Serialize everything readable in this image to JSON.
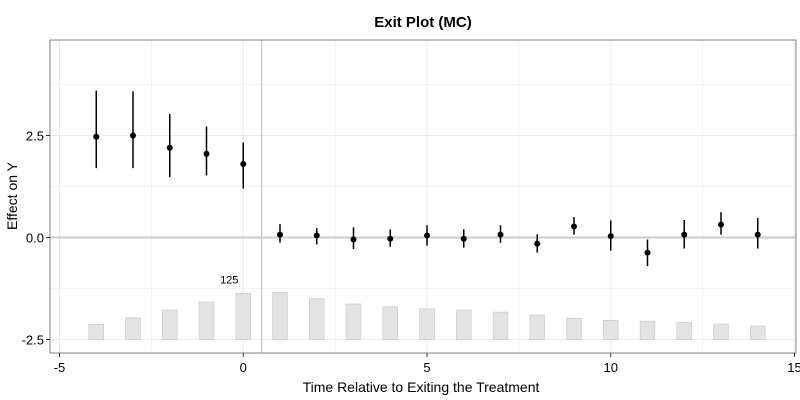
{
  "chart_data": {
    "type": "scatter",
    "title": "Exit Plot (MC)",
    "xlabel": "Time Relative to Exiting the Treatment",
    "ylabel": "Effect on Y",
    "xlim": [
      -5,
      15
    ],
    "ylim": [
      -2.75,
      4.75
    ],
    "x_ticks": [
      -5,
      0,
      5,
      10,
      15
    ],
    "x_tick_labels": [
      "-5",
      "0",
      "5",
      "10",
      "15"
    ],
    "y_ticks": [
      -2.5,
      0,
      2.5
    ],
    "y_tick_labels": [
      "-2.5",
      "0.0",
      "2.5"
    ],
    "grid": true,
    "reference_lines": {
      "horizontal_y": 0,
      "vertical_x": 0.5
    },
    "estimates": {
      "x": [
        -4,
        -3,
        -2,
        -1,
        0,
        1,
        2,
        3,
        4,
        5,
        6,
        7,
        8,
        9,
        10,
        11,
        12,
        13,
        14
      ],
      "y": [
        2.47,
        2.5,
        2.2,
        2.05,
        1.8,
        0.07,
        0.05,
        -0.05,
        -0.03,
        0.05,
        -0.03,
        0.07,
        -0.15,
        0.27,
        0.03,
        -0.37,
        0.07,
        0.32,
        0.07
      ],
      "lower": [
        1.7,
        1.7,
        1.48,
        1.52,
        1.2,
        -0.13,
        -0.17,
        -0.28,
        -0.23,
        -0.2,
        -0.25,
        -0.13,
        -0.37,
        0.07,
        -0.32,
        -0.7,
        -0.27,
        0.07,
        -0.27
      ],
      "upper": [
        3.6,
        3.58,
        3.03,
        2.72,
        2.33,
        0.33,
        0.23,
        0.25,
        0.2,
        0.3,
        0.2,
        0.3,
        0.08,
        0.5,
        0.42,
        -0.05,
        0.43,
        0.62,
        0.48
      ]
    },
    "observation_bars": {
      "x": [
        -4,
        -3,
        -2,
        -1,
        0,
        1,
        2,
        3,
        4,
        5,
        6,
        7,
        8,
        9,
        10,
        11,
        12,
        13,
        14
      ],
      "heights": [
        0.37,
        0.53,
        0.72,
        0.92,
        1.13,
        1.15,
        1.0,
        0.87,
        0.8,
        0.75,
        0.72,
        0.67,
        0.6,
        0.52,
        0.47,
        0.45,
        0.42,
        0.38,
        0.33
      ],
      "baseline": -2.5,
      "max_label": "125",
      "max_label_x": 0
    },
    "colors": {
      "points": "#000000",
      "bars": "#e3e3e3",
      "bar_stroke": "#cfcfcf",
      "zero_line": "#cccccc",
      "vertical_line": "#cccccc",
      "grid": "#ececec",
      "panel_border": "#808080"
    }
  }
}
